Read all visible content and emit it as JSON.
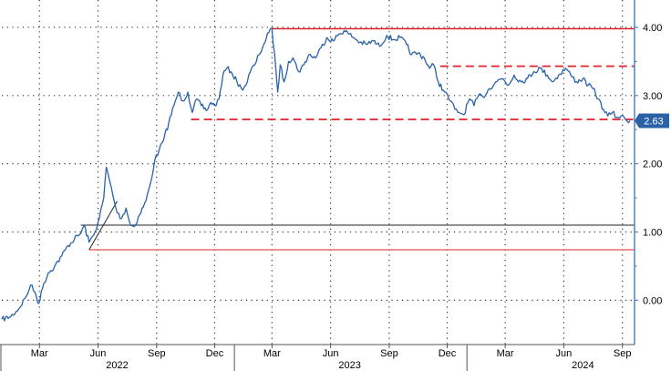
{
  "chart_data": {
    "type": "line",
    "title": "",
    "xlabel": "",
    "ylabel": "",
    "ylim": [
      -0.65,
      4.4
    ],
    "xlim": [
      "2022-01-01",
      "2024-09-20"
    ],
    "y_ticks": [
      {
        "value": 0,
        "label": "0.00"
      },
      {
        "value": 1,
        "label": "1.00"
      },
      {
        "value": 2,
        "label": "2.00"
      },
      {
        "value": 3,
        "label": "3.00"
      },
      {
        "value": 4,
        "label": "4.00"
      }
    ],
    "x_ticks": [
      {
        "date": "2022-03-01",
        "label": "Mar"
      },
      {
        "date": "2022-06-01",
        "label": "Jun"
      },
      {
        "date": "2022-09-01",
        "label": "Sep"
      },
      {
        "date": "2022-12-01",
        "label": "Dec"
      },
      {
        "date": "2023-03-01",
        "label": "Mar"
      },
      {
        "date": "2023-06-01",
        "label": "Jun"
      },
      {
        "date": "2023-09-01",
        "label": "Sep"
      },
      {
        "date": "2023-12-01",
        "label": "Dec"
      },
      {
        "date": "2024-03-01",
        "label": "Mar"
      },
      {
        "date": "2024-06-01",
        "label": "Jun"
      },
      {
        "date": "2024-09-01",
        "label": "Sep"
      }
    ],
    "year_labels": [
      {
        "date": "2022-07-01",
        "label": "2022"
      },
      {
        "date": "2023-07-01",
        "label": "2023"
      },
      {
        "date": "2024-07-01",
        "label": "2024"
      }
    ],
    "year_dividers": [
      "2023-01-01",
      "2024-01-01"
    ],
    "grid": true,
    "last_value_label": "2.63",
    "series": [
      {
        "color": "#2a62a8",
        "points": [
          [
            "2022-01-01",
            -0.28
          ],
          [
            "2022-01-15",
            -0.24
          ],
          [
            "2022-01-28",
            -0.12
          ],
          [
            "2022-02-08",
            0.05
          ],
          [
            "2022-02-15",
            0.22
          ],
          [
            "2022-02-22",
            0.12
          ],
          [
            "2022-02-28",
            -0.05
          ],
          [
            "2022-03-08",
            0.25
          ],
          [
            "2022-03-15",
            0.4
          ],
          [
            "2022-03-25",
            0.5
          ],
          [
            "2022-04-05",
            0.65
          ],
          [
            "2022-04-15",
            0.8
          ],
          [
            "2022-04-25",
            0.9
          ],
          [
            "2022-05-05",
            0.98
          ],
          [
            "2022-05-10",
            1.1
          ],
          [
            "2022-05-18",
            0.85
          ],
          [
            "2022-05-25",
            0.95
          ],
          [
            "2022-06-03",
            1.2
          ],
          [
            "2022-06-10",
            1.5
          ],
          [
            "2022-06-14",
            1.95
          ],
          [
            "2022-06-18",
            1.8
          ],
          [
            "2022-06-24",
            1.55
          ],
          [
            "2022-07-01",
            1.28
          ],
          [
            "2022-07-08",
            1.2
          ],
          [
            "2022-07-15",
            1.35
          ],
          [
            "2022-07-22",
            1.1
          ],
          [
            "2022-07-28",
            1.08
          ],
          [
            "2022-08-05",
            1.25
          ],
          [
            "2022-08-15",
            1.45
          ],
          [
            "2022-08-22",
            1.7
          ],
          [
            "2022-08-29",
            2.05
          ],
          [
            "2022-09-05",
            2.2
          ],
          [
            "2022-09-12",
            2.35
          ],
          [
            "2022-09-20",
            2.6
          ],
          [
            "2022-09-28",
            2.85
          ],
          [
            "2022-10-05",
            3.05
          ],
          [
            "2022-10-12",
            2.92
          ],
          [
            "2022-10-20",
            3.05
          ],
          [
            "2022-10-27",
            2.75
          ],
          [
            "2022-11-03",
            2.95
          ],
          [
            "2022-11-10",
            2.85
          ],
          [
            "2022-11-18",
            2.78
          ],
          [
            "2022-11-25",
            2.9
          ],
          [
            "2022-12-01",
            2.85
          ],
          [
            "2022-12-08",
            2.95
          ],
          [
            "2022-12-14",
            3.3
          ],
          [
            "2022-12-20",
            3.4
          ],
          [
            "2022-12-27",
            3.35
          ],
          [
            "2023-01-05",
            3.2
          ],
          [
            "2023-01-12",
            3.1
          ],
          [
            "2023-01-19",
            3.15
          ],
          [
            "2023-01-26",
            3.35
          ],
          [
            "2023-02-02",
            3.45
          ],
          [
            "2023-02-09",
            3.6
          ],
          [
            "2023-02-16",
            3.75
          ],
          [
            "2023-02-24",
            3.92
          ],
          [
            "2023-03-01",
            3.98
          ],
          [
            "2023-03-07",
            3.4
          ],
          [
            "2023-03-10",
            3.05
          ],
          [
            "2023-03-14",
            3.45
          ],
          [
            "2023-03-20",
            3.2
          ],
          [
            "2023-03-27",
            3.5
          ],
          [
            "2023-04-03",
            3.55
          ],
          [
            "2023-04-12",
            3.35
          ],
          [
            "2023-04-20",
            3.45
          ],
          [
            "2023-04-28",
            3.6
          ],
          [
            "2023-05-08",
            3.55
          ],
          [
            "2023-05-17",
            3.7
          ],
          [
            "2023-05-26",
            3.85
          ],
          [
            "2023-06-05",
            3.8
          ],
          [
            "2023-06-14",
            3.9
          ],
          [
            "2023-06-22",
            3.95
          ],
          [
            "2023-06-30",
            3.9
          ],
          [
            "2023-07-07",
            3.85
          ],
          [
            "2023-07-17",
            3.78
          ],
          [
            "2023-07-27",
            3.75
          ],
          [
            "2023-08-07",
            3.8
          ],
          [
            "2023-08-17",
            3.72
          ],
          [
            "2023-08-28",
            3.88
          ],
          [
            "2023-09-07",
            3.82
          ],
          [
            "2023-09-18",
            3.85
          ],
          [
            "2023-09-28",
            3.75
          ],
          [
            "2023-10-06",
            3.6
          ],
          [
            "2023-10-16",
            3.62
          ],
          [
            "2023-10-26",
            3.55
          ],
          [
            "2023-11-03",
            3.4
          ],
          [
            "2023-11-10",
            3.45
          ],
          [
            "2023-11-17",
            3.2
          ],
          [
            "2023-11-27",
            3.05
          ],
          [
            "2023-12-06",
            2.92
          ],
          [
            "2023-12-13",
            2.8
          ],
          [
            "2023-12-20",
            2.75
          ],
          [
            "2023-12-27",
            2.72
          ],
          [
            "2024-01-05",
            2.95
          ],
          [
            "2024-01-12",
            2.85
          ],
          [
            "2024-01-19",
            3.0
          ],
          [
            "2024-01-26",
            2.98
          ],
          [
            "2024-02-05",
            3.1
          ],
          [
            "2024-02-15",
            3.2
          ],
          [
            "2024-02-26",
            3.25
          ],
          [
            "2024-03-06",
            3.15
          ],
          [
            "2024-03-15",
            3.3
          ],
          [
            "2024-03-26",
            3.2
          ],
          [
            "2024-04-05",
            3.25
          ],
          [
            "2024-04-15",
            3.35
          ],
          [
            "2024-04-25",
            3.4
          ],
          [
            "2024-05-06",
            3.3
          ],
          [
            "2024-05-15",
            3.2
          ],
          [
            "2024-05-24",
            3.3
          ],
          [
            "2024-06-04",
            3.4
          ],
          [
            "2024-06-12",
            3.3
          ],
          [
            "2024-06-21",
            3.2
          ],
          [
            "2024-07-01",
            3.25
          ],
          [
            "2024-07-09",
            3.15
          ],
          [
            "2024-07-17",
            3.1
          ],
          [
            "2024-07-25",
            2.95
          ],
          [
            "2024-08-02",
            2.8
          ],
          [
            "2024-08-09",
            2.7
          ],
          [
            "2024-08-16",
            2.75
          ],
          [
            "2024-08-23",
            2.68
          ],
          [
            "2024-08-30",
            2.7
          ],
          [
            "2024-09-06",
            2.65
          ],
          [
            "2024-09-13",
            2.63
          ]
        ]
      }
    ],
    "annotations": {
      "hlines": [
        {
          "y": 3.98,
          "x_start": "2023-03-01",
          "x_end": "2024-09-20",
          "color": "#e0202a",
          "style": "solid",
          "width": 1.5
        },
        {
          "y": 3.43,
          "x_start": "2023-11-20",
          "x_end": "2024-09-20",
          "color": "#e0202a",
          "style": "dashed",
          "width": 1.8
        },
        {
          "y": 2.65,
          "x_start": "2022-10-25",
          "x_end": "2024-09-20",
          "color": "#e0202a",
          "style": "dashed",
          "width": 1.8
        },
        {
          "y": 1.1,
          "x_start": "2022-05-05",
          "x_end": "2024-09-20",
          "color": "#222222",
          "style": "solid",
          "width": 1
        },
        {
          "y": 0.74,
          "x_start": "2022-05-18",
          "x_end": "2024-09-20",
          "color": "#e0202a",
          "style": "solid",
          "width": 1
        }
      ],
      "segments": [
        {
          "x1": "2022-05-18",
          "y1": 0.74,
          "x2": "2022-07-01",
          "y2": 1.45,
          "color": "#222222"
        }
      ]
    },
    "colors": {
      "series": "#2a62a8",
      "axis": "#4a86c5",
      "badge": "#2a62a8",
      "badge_text": "#ffffff",
      "grid": "#333333",
      "line": "#e0202a"
    }
  }
}
